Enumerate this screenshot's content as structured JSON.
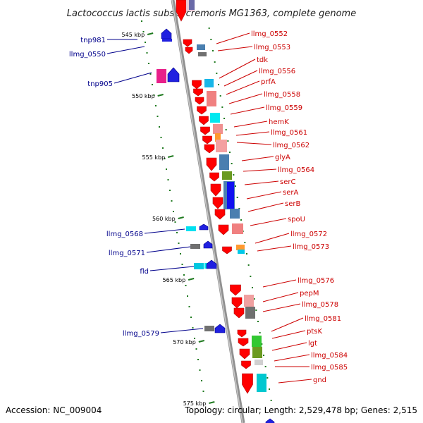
{
  "title": "Lactococcus lactis subsp. cremoris MG1363, complete genome",
  "footer": {
    "accession": "Accession: NC_009004",
    "summary": "Topology: circular; Length: 2,529,478 bp; Genes: 2,515"
  },
  "colors": {
    "forward_label": "#00008b",
    "reverse_label": "#cc0000",
    "tick": "#1f7a1f",
    "backbone": "#909090"
  },
  "scale_ticks": [
    "545 kbp",
    "550 kbp",
    "555 kbp",
    "560 kbp",
    "565 kbp",
    "570 kbp",
    "575 kbp"
  ],
  "left_genes": [
    "tnp981",
    "llmg_0550",
    "tnp905",
    "llmg_0568",
    "llmg_0571",
    "fld",
    "llmg_0579"
  ],
  "right_genes": [
    "llmg_0552",
    "llmg_0553",
    "tdk",
    "llmg_0556",
    "prfA",
    "llmg_0558",
    "llmg_0559",
    "hemK",
    "llmg_0561",
    "llmg_0562",
    "glyA",
    "llmg_0564",
    "serC",
    "serA",
    "serB",
    "spoU",
    "llmg_0572",
    "llmg_0573",
    "llmg_0576",
    "pepM",
    "llmg_0578",
    "llmg_0581",
    "ptsK",
    "lgt",
    "llmg_0584",
    "llmg_0585",
    "gnd"
  ]
}
